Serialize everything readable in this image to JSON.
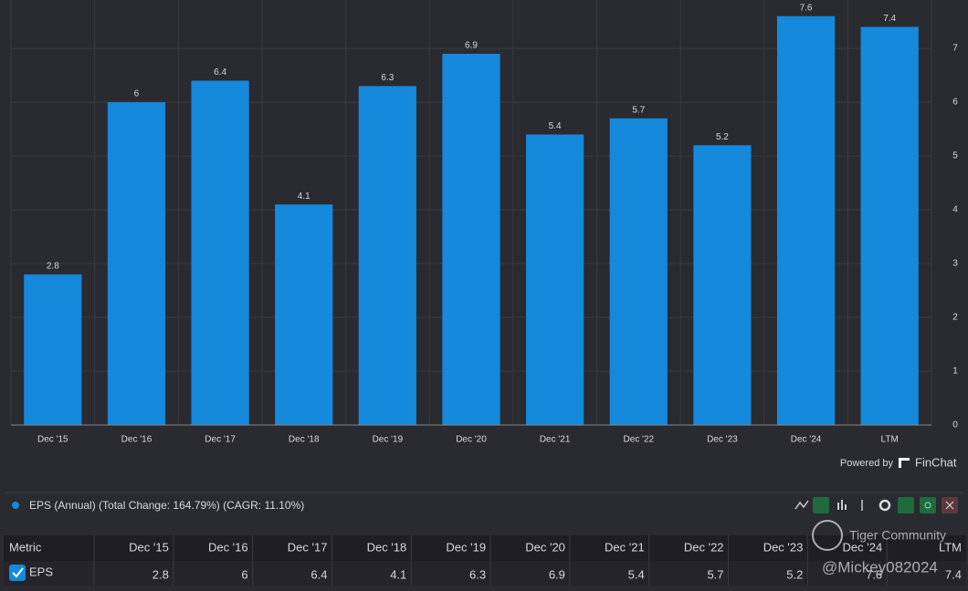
{
  "chart_data": {
    "type": "bar",
    "series_name": "EPS (Annual) (Total Change: 164.79%) (CAGR: 11.10%)",
    "categories": [
      "Dec '15",
      "Dec '16",
      "Dec '17",
      "Dec '18",
      "Dec '19",
      "Dec '20",
      "Dec '21",
      "Dec '22",
      "Dec '23",
      "Dec '24",
      "LTM"
    ],
    "values": [
      2.8,
      6,
      6.4,
      4.1,
      6.3,
      6.9,
      5.4,
      5.7,
      5.2,
      7.6,
      7.4
    ],
    "color": "#1589dc",
    "ylim": [
      0,
      7.9
    ],
    "yticks": [
      0,
      1,
      2,
      3,
      4,
      5,
      6,
      7
    ],
    "grid": true
  },
  "branding": {
    "powered_by": "Powered by",
    "brand": "FinChat"
  },
  "table": {
    "header": "Metric",
    "row_label": "EPS"
  },
  "watermark": {
    "site": "Tiger Community",
    "user": "@Mickey082024"
  }
}
